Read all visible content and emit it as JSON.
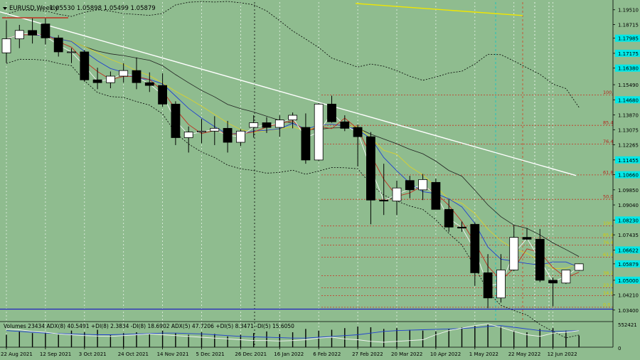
{
  "chart_data": {
    "type": "candlestick",
    "title": "EURUSD,Weekly",
    "ohlc_text": "1.05530 1.05898 1.05499 1.05879",
    "ylim": [
      1.0282,
      1.1992
    ],
    "y_ticks": [
      1.1951,
      1.18715,
      1.17985,
      1.17175,
      1.1638,
      1.1549,
      1.1468,
      1.1387,
      1.13075,
      1.12265,
      1.11455,
      1.1066,
      1.0985,
      1.0904,
      1.0823,
      1.07435,
      1.06622,
      1.05879,
      1.05,
      1.0421,
      1.034
    ],
    "y_tick_labels": [
      "1.19510",
      "1.18715",
      "1.17985",
      "1.17175",
      "1.16380",
      "1.15490",
      "1.14680",
      "1.13870",
      "1.13075",
      "1.12265",
      "1.11455",
      "1.10660",
      "1.09850",
      "1.09040",
      "1.08230",
      "1.07435",
      "1.06622",
      "1.05879",
      "1.05000",
      "1.04210",
      "1.03400"
    ],
    "highlighted_y_labels": [
      "1.17985",
      "1.17175",
      "1.16380",
      "1.14680",
      "1.11455",
      "1.10660",
      "1.08230",
      "1.06622",
      "1.05879",
      "1.05000"
    ],
    "x_labels": [
      "22 Aug 2021",
      "12 Sep 2021",
      "3 Oct 2021",
      "24 Oct 2021",
      "14 Nov 2021",
      "5 Dec 2021",
      "26 Dec 2021",
      "16 Jan 2022",
      "6 Feb 2022",
      "27 Feb 2022",
      "20 Mar 2022",
      "10 Apr 2022",
      "1 May 2022",
      "22 May 2022",
      "12 Jun 2022"
    ],
    "x_label_index": [
      0,
      3,
      6,
      9,
      12,
      15,
      18,
      21,
      24,
      27,
      30,
      33,
      36,
      39,
      42
    ],
    "candles": [
      [
        1.172,
        1.1895,
        1.1665,
        1.1795
      ],
      [
        1.1795,
        1.187,
        1.1745,
        1.184
      ],
      [
        1.184,
        1.1905,
        1.177,
        1.1815
      ],
      [
        1.1875,
        1.1905,
        1.1765,
        1.18
      ],
      [
        1.18,
        1.1815,
        1.17,
        1.1725
      ],
      [
        1.1725,
        1.1745,
        1.1665,
        1.1725
      ],
      [
        1.1725,
        1.1735,
        1.1565,
        1.1575
      ],
      [
        1.1575,
        1.164,
        1.1525,
        1.156
      ],
      [
        1.156,
        1.162,
        1.153,
        1.1595
      ],
      [
        1.1595,
        1.1665,
        1.156,
        1.1625
      ],
      [
        1.1625,
        1.1695,
        1.1525,
        1.156
      ],
      [
        1.156,
        1.1615,
        1.151,
        1.1545
      ],
      [
        1.1545,
        1.161,
        1.143,
        1.1445
      ],
      [
        1.1445,
        1.146,
        1.1225,
        1.1265
      ],
      [
        1.1265,
        1.1325,
        1.1185,
        1.1295
      ],
      [
        1.1295,
        1.1365,
        1.1235,
        1.13
      ],
      [
        1.13,
        1.138,
        1.1225,
        1.1315
      ],
      [
        1.1315,
        1.1355,
        1.1185,
        1.124
      ],
      [
        1.124,
        1.131,
        1.122,
        1.13
      ],
      [
        1.132,
        1.1385,
        1.1265,
        1.1345
      ],
      [
        1.1345,
        1.1375,
        1.129,
        1.132
      ],
      [
        1.132,
        1.1385,
        1.127,
        1.136
      ],
      [
        1.136,
        1.14,
        1.1315,
        1.1385
      ],
      [
        1.132,
        1.1395,
        1.1125,
        1.1145
      ],
      [
        1.1145,
        1.145,
        1.114,
        1.1445
      ],
      [
        1.1445,
        1.149,
        1.1345,
        1.135
      ],
      [
        1.135,
        1.1385,
        1.13,
        1.1315
      ],
      [
        1.132,
        1.1335,
        1.111,
        1.127
      ],
      [
        1.127,
        1.1295,
        1.08,
        1.093
      ],
      [
        1.093,
        1.1125,
        1.085,
        1.0925
      ],
      [
        1.0925,
        1.1035,
        1.085,
        1.0995
      ],
      [
        1.1035,
        1.106,
        1.094,
        1.0985
      ],
      [
        1.0985,
        1.107,
        1.093,
        1.104
      ],
      [
        1.1025,
        1.1045,
        1.088,
        1.088
      ],
      [
        1.088,
        1.0935,
        1.076,
        1.0785
      ],
      [
        1.0785,
        1.0815,
        1.076,
        1.078
      ],
      [
        1.08,
        1.081,
        1.047,
        1.054
      ],
      [
        1.054,
        1.064,
        1.035,
        1.0405
      ],
      [
        1.0405,
        1.064,
        1.038,
        1.0555
      ],
      [
        1.0555,
        1.0795,
        1.055,
        1.073
      ],
      [
        1.073,
        1.078,
        1.0715,
        1.072
      ],
      [
        1.072,
        1.0775,
        1.049,
        1.05
      ],
      [
        1.05,
        1.0515,
        1.036,
        1.0485
      ],
      [
        1.0485,
        1.0555,
        1.048,
        1.0555
      ],
      [
        1.0553,
        1.059,
        1.055,
        1.0588
      ]
    ],
    "fibonacci": [
      {
        "label": "100.0",
        "value": 1.1494
      },
      {
        "label": "85.4",
        "value": 1.1331
      },
      {
        "label": "76.4",
        "value": 1.123
      },
      {
        "label": "61.8",
        "value": 1.1065
      },
      {
        "label": "50.0",
        "value": 1.0934
      },
      {
        "label": "100.0",
        "value": 1.0792
      },
      {
        "label": "85.4",
        "value": 1.0728
      },
      {
        "label": "76.4",
        "value": 1.0689
      },
      {
        "label": "61.8",
        "value": 1.0624
      },
      {
        "label": "38.2",
        "value": 1.0524
      },
      {
        "label": "23.6",
        "value": 1.046
      },
      {
        "label": "14.6",
        "value": 1.0418
      },
      {
        "label": "0.0",
        "value": 1.0355
      }
    ],
    "indicator_text": "Volumes 23434  ADX(8) 40.5491 +DI(8) 2.3834 -DI(8) 18.6902  ADX(5) 47.7206 +DI(5) 8.3471 -DI(5) 15.6050",
    "indicator_y_labels": [
      "552421",
      "0"
    ],
    "volumes": [
      30,
      38,
      34,
      36,
      30,
      40,
      36,
      42,
      30,
      34,
      36,
      32,
      40,
      34,
      30,
      36,
      32,
      26,
      30,
      34,
      38,
      32,
      36,
      44,
      40,
      42,
      46,
      50,
      48,
      44,
      46,
      42,
      40,
      38,
      44,
      48,
      52,
      56,
      50,
      40,
      36,
      44,
      46,
      40,
      28
    ],
    "adx_line": [
      40,
      38,
      36,
      34,
      33,
      32,
      31,
      30,
      30,
      31,
      32,
      33,
      34,
      34,
      33,
      32,
      30,
      28,
      26,
      25,
      24,
      23,
      22,
      22,
      24,
      26,
      28,
      30,
      34,
      38,
      40,
      41,
      42,
      43,
      44,
      45,
      47,
      50,
      52,
      48,
      44,
      40,
      38,
      39,
      40
    ],
    "di_line": [
      44,
      42,
      38,
      36,
      32,
      30,
      28,
      27,
      26,
      28,
      30,
      32,
      30,
      28,
      26,
      24,
      22,
      20,
      18,
      16,
      16,
      15,
      16,
      18,
      22,
      24,
      20,
      18,
      14,
      12,
      14,
      16,
      18,
      30,
      40,
      46,
      52,
      56,
      48,
      38,
      30,
      26,
      34,
      36,
      40
    ]
  }
}
